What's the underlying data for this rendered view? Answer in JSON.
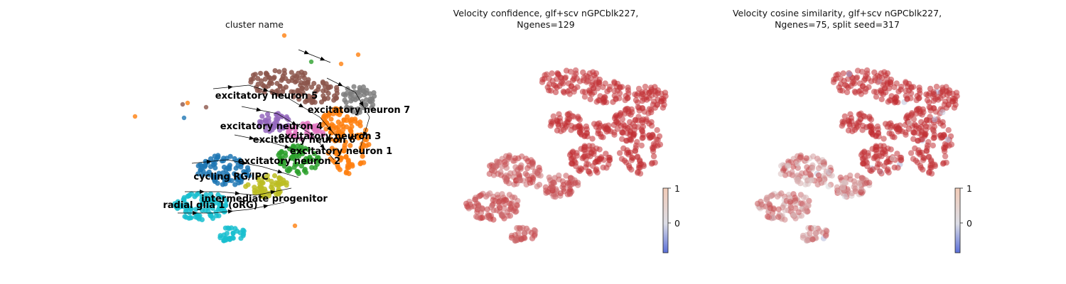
{
  "panels": [
    {
      "title_lines": [
        "cluster name"
      ],
      "type": "scatter_categorical_streamplot",
      "clusters": [
        {
          "name": "excitatory neuron 5",
          "color": "#8c564b"
        },
        {
          "name": "excitatory neuron 7",
          "color": "#7f7f7f"
        },
        {
          "name": "excitatory neuron 4",
          "color": "#9467bd"
        },
        {
          "name": "excitatory neuron 3",
          "color": "#e377c2"
        },
        {
          "name": "excitatory neuron 6",
          "color": "#bcbd22"
        },
        {
          "name": "excitatory neuron 1",
          "color": "#ff7f0e"
        },
        {
          "name": "excitatory neuron 2",
          "color": "#2ca02c"
        },
        {
          "name": "cycling RG/IPC",
          "color": "#1f77b4"
        },
        {
          "name": "intermediate progenitor",
          "color": "#bcbd22"
        },
        {
          "name": "radial glia 1 (oRG)",
          "color": "#17becf"
        }
      ]
    },
    {
      "title_lines": [
        "Velocity confidence, glf+scv nGPCblk227,",
        "Ngenes=129"
      ],
      "type": "scatter_continuous",
      "colorbar": {
        "ticks": [
          "1",
          "0"
        ],
        "cmap": "coolwarm"
      }
    },
    {
      "title_lines": [
        "Velocity cosine similarity, glf+scv nGPCblk227,",
        "Ngenes=75, split seed=317"
      ],
      "type": "scatter_continuous",
      "colorbar": {
        "ticks": [
          "1",
          "0"
        ],
        "cmap": "coolwarm"
      }
    }
  ],
  "chart_data": {
    "type": "scatter",
    "title": "",
    "legend": "on data",
    "color_scale": {
      "min": -0.8,
      "max": 1.0,
      "low_color": "#4a5fd0",
      "mid_color": "#dddddd",
      "high_color": "#c0282d"
    },
    "colors": {
      "high": "#c4262d"
    }
  }
}
